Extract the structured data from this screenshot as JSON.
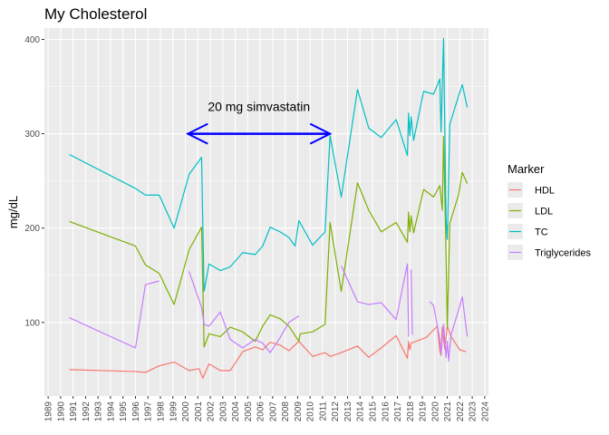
{
  "chart_data": {
    "type": "line",
    "title": "My Cholesterol",
    "xlabel": "",
    "ylabel": "mg/dL",
    "xlim": [
      1988.7,
      2024.3
    ],
    "ylim": [
      22,
      412
    ],
    "x_ticks": [
      "1989",
      "1990",
      "1991",
      "1992",
      "1993",
      "1994",
      "1995",
      "1996",
      "1997",
      "1998",
      "1999",
      "2000",
      "2001",
      "2002",
      "2003",
      "2004",
      "2005",
      "2006",
      "2007",
      "2008",
      "2009",
      "2010",
      "2011",
      "2012",
      "2013",
      "2014",
      "2015",
      "2016",
      "2017",
      "2018",
      "2019",
      "2020",
      "2021",
      "2022",
      "2023",
      "2024"
    ],
    "y_ticks": [
      100,
      200,
      300,
      400
    ],
    "grid": true,
    "legend": {
      "title": "Marker",
      "position": "right"
    },
    "annotation": {
      "text": "20 mg simvastatin",
      "arrow_from": 2000.2,
      "arrow_to": 2011.6,
      "arrow_y": 300,
      "color": "#0000ff"
    },
    "series": [
      {
        "name": "HDL",
        "color": "#F8766D",
        "segments": [
          [
            [
              1990.7,
              50
            ],
            [
              1996,
              48
            ],
            [
              1996.8,
              47
            ],
            [
              1997.9,
              54
            ],
            [
              1999.1,
              58
            ],
            [
              2000.3,
              49
            ],
            [
              2001.1,
              51
            ],
            [
              2001.4,
              41
            ],
            [
              2001.9,
              56
            ],
            [
              2002.8,
              49
            ],
            [
              2003.6,
              49
            ],
            [
              2004.6,
              69
            ],
            [
              2005.6,
              74
            ],
            [
              2006.2,
              71
            ],
            [
              2006.8,
              79
            ],
            [
              2007.6,
              76
            ],
            [
              2008.3,
              70
            ],
            [
              2009.1,
              80
            ],
            [
              2010.2,
              64
            ],
            [
              2011.2,
              68
            ],
            [
              2011.6,
              64
            ],
            [
              2012.5,
              68
            ],
            [
              2013.8,
              75
            ],
            [
              2014.7,
              63
            ],
            [
              2015.7,
              73
            ],
            [
              2016.9,
              86
            ],
            [
              2017.8,
              62
            ],
            [
              2017.9,
              80
            ],
            [
              2018,
              71
            ],
            [
              2018.1,
              78
            ],
            [
              2018.5,
              80
            ],
            [
              2019.3,
              84
            ],
            [
              2019.9,
              92
            ],
            [
              2020.2,
              96
            ],
            [
              2020.4,
              70
            ],
            [
              2020.5,
              65
            ],
            [
              2020.6,
              95
            ],
            [
              2020.8,
              72
            ],
            [
              2021,
              96
            ],
            [
              2021.3,
              85
            ],
            [
              2022,
              71
            ],
            [
              2022.5,
              69
            ]
          ]
        ]
      },
      {
        "name": "LDL",
        "color": "#7CAE00",
        "segments": [
          [
            [
              1990.7,
              207
            ],
            [
              1996,
              181
            ],
            [
              1996.8,
              161
            ],
            [
              1997.9,
              152
            ],
            [
              1999.1,
              119
            ],
            [
              2000.3,
              177
            ],
            [
              2001.3,
              201
            ],
            [
              2001.5,
              74
            ],
            [
              2001.9,
              88
            ],
            [
              2002.8,
              85
            ],
            [
              2003.6,
              95
            ],
            [
              2004.6,
              90
            ],
            [
              2005.6,
              80
            ],
            [
              2006.2,
              96
            ],
            [
              2006.8,
              108
            ],
            [
              2007.6,
              104
            ],
            [
              2008.3,
              96
            ],
            [
              2009.1,
              80
            ],
            [
              2009.2,
              88
            ],
            [
              2010.2,
              90
            ],
            [
              2011.2,
              98
            ],
            [
              2011.6,
              206
            ],
            [
              2012.5,
              133
            ],
            [
              2013.8,
              248
            ],
            [
              2014.7,
              219
            ],
            [
              2015.7,
              196
            ],
            [
              2016.9,
              206
            ],
            [
              2017.8,
              185
            ],
            [
              2017.9,
              217
            ],
            [
              2018,
              196
            ],
            [
              2018.1,
              213
            ],
            [
              2018.3,
              195
            ],
            [
              2019.1,
              241
            ],
            [
              2019.9,
              233
            ],
            [
              2020.4,
              245
            ],
            [
              2020.6,
              219
            ],
            [
              2020.7,
              297
            ],
            [
              2020.9,
              173
            ],
            [
              2021,
              95
            ],
            [
              2021.2,
              205
            ],
            [
              2021.9,
              235
            ],
            [
              2022.2,
              259
            ],
            [
              2022.6,
              247
            ]
          ]
        ]
      },
      {
        "name": "TC",
        "color": "#00BFC4",
        "segments": [
          [
            [
              1990.7,
              278
            ],
            [
              1996,
              242
            ],
            [
              1996.8,
              235
            ],
            [
              1997.9,
              235
            ],
            [
              1999.1,
              200
            ],
            [
              2000.3,
              257
            ],
            [
              2001.3,
              275
            ],
            [
              2001.5,
              133
            ],
            [
              2001.9,
              162
            ],
            [
              2002.8,
              155
            ],
            [
              2003.6,
              159
            ],
            [
              2004.6,
              174
            ],
            [
              2005.6,
              172
            ],
            [
              2006.2,
              181
            ],
            [
              2006.8,
              201
            ],
            [
              2007.6,
              196
            ],
            [
              2008.3,
              190
            ],
            [
              2008.8,
              181
            ],
            [
              2009.1,
              208
            ],
            [
              2010.2,
              182
            ],
            [
              2011.2,
              196
            ],
            [
              2011.6,
              298
            ],
            [
              2012.5,
              233
            ],
            [
              2013.8,
              347
            ],
            [
              2014.7,
              306
            ],
            [
              2015.7,
              296
            ],
            [
              2016.9,
              315
            ],
            [
              2017.8,
              277
            ],
            [
              2017.9,
              322
            ],
            [
              2018,
              298
            ],
            [
              2018.1,
              318
            ],
            [
              2018.3,
              293
            ],
            [
              2019.1,
              345
            ],
            [
              2019.9,
              342
            ],
            [
              2020.4,
              358
            ],
            [
              2020.5,
              302
            ],
            [
              2020.7,
              401
            ],
            [
              2020.9,
              209
            ],
            [
              2021,
              188
            ],
            [
              2021.2,
              310
            ],
            [
              2021.9,
              340
            ],
            [
              2022.2,
              352
            ],
            [
              2022.6,
              328
            ]
          ]
        ]
      },
      {
        "name": "Triglycerides",
        "color": "#C77CFF",
        "segments": [
          [
            [
              1990.7,
              105
            ],
            [
              1996,
              73
            ],
            [
              1996.8,
              140
            ],
            [
              1997.9,
              144
            ]
          ],
          [
            [
              2000.3,
              154
            ],
            [
              2001.3,
              116
            ],
            [
              2001.5,
              98
            ],
            [
              2001.9,
              96
            ],
            [
              2002.8,
              111
            ],
            [
              2003.6,
              82
            ],
            [
              2004.6,
              73
            ],
            [
              2005.6,
              82
            ],
            [
              2006.2,
              78
            ],
            [
              2006.8,
              68
            ],
            [
              2007.6,
              84
            ],
            [
              2008.3,
              100
            ],
            [
              2009.1,
              107
            ]
          ],
          [
            [
              2012.5,
              160
            ],
            [
              2013.8,
              122
            ],
            [
              2014.7,
              119
            ],
            [
              2015.7,
              121
            ],
            [
              2016.9,
              103
            ],
            [
              2017.8,
              162
            ],
            [
              2017.9,
              85
            ]
          ],
          [
            [
              2018.1,
              156
            ],
            [
              2018.2,
              87
            ]
          ],
          [
            [
              2019.6,
              122
            ],
            [
              2019.9,
              118
            ],
            [
              2020.4,
              82
            ],
            [
              2020.5,
              67
            ],
            [
              2020.7,
              98
            ],
            [
              2020.9,
              63
            ],
            [
              2021,
              80
            ],
            [
              2021.1,
              59
            ],
            [
              2021.3,
              87
            ],
            [
              2021.9,
              113
            ],
            [
              2022.2,
              127
            ],
            [
              2022.6,
              85
            ]
          ]
        ]
      }
    ]
  }
}
